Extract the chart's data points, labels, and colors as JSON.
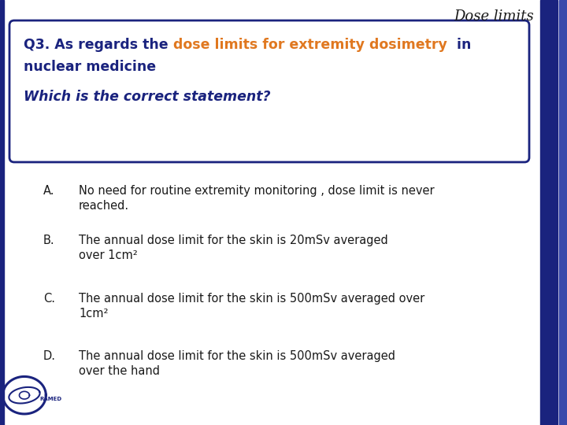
{
  "title": "Dose limits",
  "background_color": "#ffffff",
  "sidebar_color": "#1a237e",
  "sidebar_color2": "#3949ab",
  "question_box": {
    "box_color": "#ffffff",
    "border_color": "#1a237e",
    "text_color": "#1a237e",
    "highlight_color": "#e07820",
    "subtext_color": "#1a237e",
    "q_part1": "Q3. As regards the ",
    "q_highlight": "dose limits for extremity dosimetry",
    "q_part2": "  in",
    "q_line2": "nuclear medicine",
    "q_sub": "Which is the correct statement?"
  },
  "options": [
    {
      "label": "A.",
      "line1": "No need for routine extremity monitoring , dose limit is never",
      "line2": "reached."
    },
    {
      "label": "B.",
      "line1": "The annual dose limit for the skin is 20mSv averaged",
      "line2": "over 1cm²"
    },
    {
      "label": "C.",
      "line1": "The annual dose limit for the skin is 500mSv averaged over",
      "line2": "1cm²"
    },
    {
      "label": "D.",
      "line1": "The annual dose limit for the skin is 500mSv averaged",
      "line2": "over the hand"
    }
  ],
  "text_color": "#1a1a1a",
  "option_font_size": 10.5,
  "question_font_size": 12.5,
  "title_font_size": 13
}
